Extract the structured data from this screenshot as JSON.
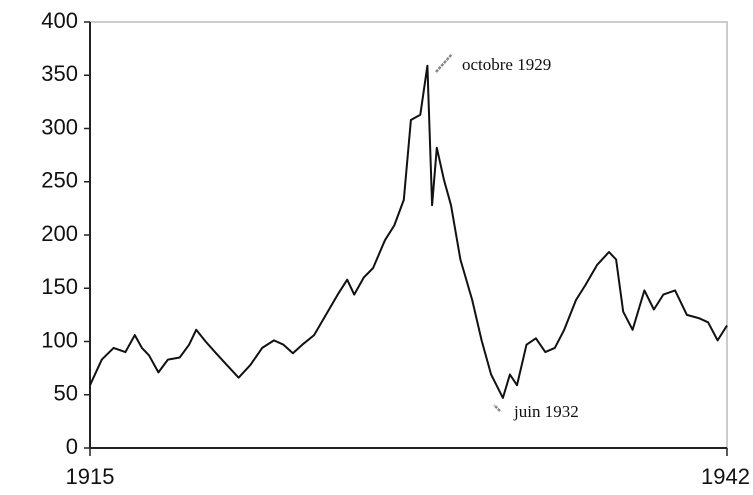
{
  "chart_data": {
    "type": "line",
    "annotations": [
      "octobre 1929",
      "juin 1932"
    ],
    "x": [
      1915.0,
      1915.5,
      1916.0,
      1916.5,
      1916.9,
      1917.2,
      1917.5,
      1917.9,
      1918.3,
      1918.8,
      1919.2,
      1919.5,
      1919.9,
      1920.3,
      1920.8,
      1921.3,
      1921.8,
      1922.3,
      1922.8,
      1923.2,
      1923.6,
      1924.0,
      1924.5,
      1925.0,
      1925.5,
      1925.9,
      1926.2,
      1926.6,
      1927.0,
      1927.5,
      1927.9,
      1928.3,
      1928.6,
      1929.0,
      1929.3,
      1929.5,
      1929.7,
      1930.0,
      1930.3,
      1930.7,
      1931.2,
      1931.6,
      1932.0,
      1932.5,
      1932.8,
      1933.1,
      1933.5,
      1933.9,
      1934.3,
      1934.7,
      1935.1,
      1935.6,
      1936.0,
      1936.5,
      1937.0,
      1937.3,
      1937.6,
      1938.0,
      1938.5,
      1938.9,
      1939.3,
      1939.8,
      1940.3,
      1940.8,
      1941.2,
      1941.6,
      1942.0
    ],
    "series": [
      {
        "color": "#111111",
        "values": [
          59,
          83,
          94,
          90,
          106,
          94,
          87,
          71,
          83,
          85,
          97,
          111,
          100,
          90,
          78,
          66,
          78,
          94,
          101,
          97,
          89,
          97,
          106,
          125,
          144,
          158,
          144,
          160,
          169,
          195,
          209,
          233,
          308,
          313,
          359,
          228,
          282,
          252,
          228,
          177,
          139,
          101,
          69,
          47,
          69,
          59,
          97,
          103,
          90,
          94,
          111,
          139,
          153,
          172,
          184,
          177,
          128,
          111,
          148,
          130,
          144,
          148,
          125,
          122,
          118,
          101,
          115
        ]
      }
    ],
    "xlim": [
      1915,
      1942
    ],
    "xticks": [
      1915,
      1942
    ],
    "ylim": [
      0,
      400
    ],
    "yticks": [
      0,
      50,
      100,
      150,
      200,
      250,
      300,
      350,
      400
    ]
  }
}
